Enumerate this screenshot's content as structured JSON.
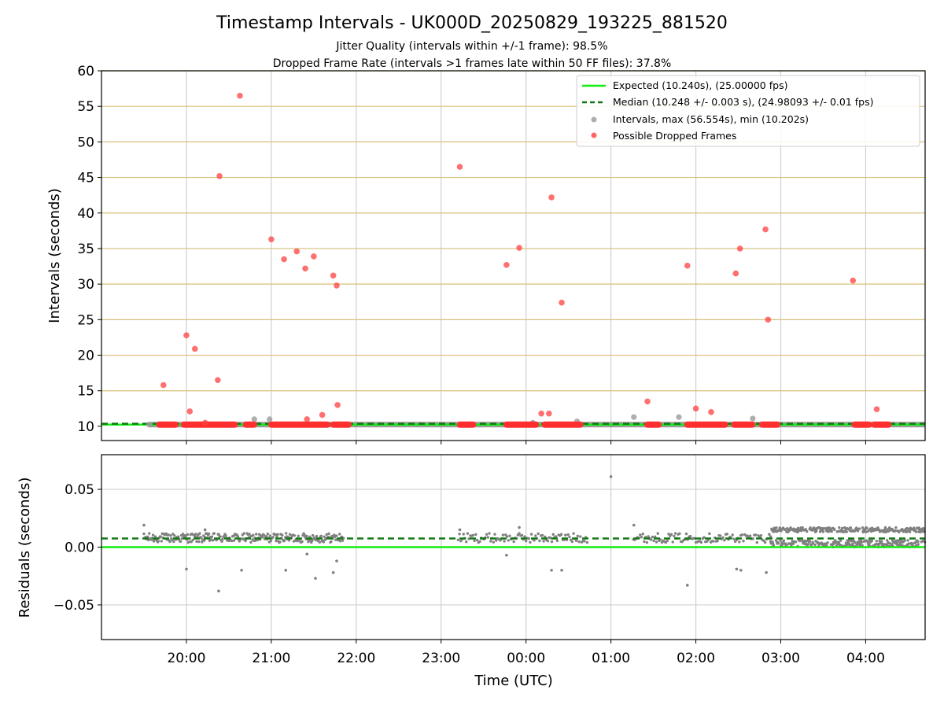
{
  "chart_data": [
    {
      "type": "scatter",
      "title": "Timestamp Intervals - UK000D_20250829_193225_881520",
      "subtitle_lines": [
        "Jitter Quality (intervals within +/-1 frame): 98.5%",
        "Dropped Frame Rate (intervals >1 frames late within 50 FF files): 37.8%"
      ],
      "xlabel": "",
      "ylabel": "Intervals (seconds)",
      "ylim": [
        8,
        60
      ],
      "yticks": [
        "10",
        "15",
        "20",
        "25",
        "30",
        "35",
        "40",
        "45",
        "50",
        "55",
        "60"
      ],
      "yticks_values": [
        10,
        15,
        20,
        25,
        30,
        35,
        40,
        45,
        50,
        55,
        60
      ],
      "xlim_hours": [
        19.0,
        28.7
      ],
      "x_hours_note": "hours UTC since 00:00 on 2025-08-29; values >24 are next day",
      "grid": {
        "x": true,
        "y_horizontal_lines": [
          15,
          20,
          25,
          30,
          35,
          40,
          45,
          50,
          55,
          60
        ]
      },
      "legend": {
        "placement": "top-right",
        "entries": [
          {
            "label": "Expected (10.240s), (25.00000 fps)",
            "kind": "line",
            "color": "#11ee11"
          },
          {
            "label": "Median (10.248 +/- 0.003 s), (24.98093 +/- 0.01 fps)",
            "kind": "dashed",
            "color": "#137813"
          },
          {
            "label": "Intervals, max (56.554s), min (10.202s)",
            "kind": "dot",
            "color": "#9a9a9a"
          },
          {
            "label": "Possible Dropped Frames",
            "kind": "dot",
            "color": "#ff4040"
          }
        ]
      },
      "expected_value": 10.24,
      "median_value": 10.248,
      "series": [
        {
          "name": "Possible Dropped Frames",
          "color": "#ff4040",
          "points": [
            [
              19.73,
              15.8
            ],
            [
              20.0,
              22.8
            ],
            [
              20.04,
              12.1
            ],
            [
              20.1,
              20.9
            ],
            [
              20.22,
              10.5
            ],
            [
              20.37,
              16.5
            ],
            [
              20.39,
              45.2
            ],
            [
              20.63,
              56.5
            ],
            [
              21.0,
              36.3
            ],
            [
              21.15,
              33.5
            ],
            [
              21.3,
              34.6
            ],
            [
              21.4,
              32.2
            ],
            [
              21.42,
              11.0
            ],
            [
              21.5,
              33.9
            ],
            [
              21.6,
              11.6
            ],
            [
              21.73,
              31.2
            ],
            [
              21.77,
              29.8
            ],
            [
              21.78,
              13.0
            ],
            [
              23.22,
              46.5
            ],
            [
              23.77,
              32.7
            ],
            [
              23.92,
              35.1
            ],
            [
              24.18,
              11.8
            ],
            [
              24.27,
              11.8
            ],
            [
              24.3,
              42.2
            ],
            [
              24.42,
              27.4
            ],
            [
              25.43,
              13.5
            ],
            [
              25.9,
              32.6
            ],
            [
              26.0,
              12.5
            ],
            [
              26.18,
              12.0
            ],
            [
              26.47,
              31.5
            ],
            [
              26.52,
              35.0
            ],
            [
              26.82,
              37.7
            ],
            [
              26.85,
              25.0
            ],
            [
              27.85,
              30.5
            ],
            [
              28.13,
              12.4
            ]
          ],
          "clusters_at_10_24": [
            [
              19.68,
              19.88
            ],
            [
              19.97,
              20.58
            ],
            [
              20.7,
              20.8
            ],
            [
              21.0,
              21.67
            ],
            [
              21.73,
              21.92
            ],
            [
              23.22,
              23.38
            ],
            [
              23.77,
              24.12
            ],
            [
              24.22,
              24.65
            ],
            [
              25.43,
              25.57
            ],
            [
              25.9,
              26.35
            ],
            [
              26.45,
              26.67
            ],
            [
              26.78,
              26.97
            ],
            [
              27.87,
              28.05
            ],
            [
              28.1,
              28.27
            ]
          ]
        },
        {
          "name": "Intervals",
          "color": "#9a9a9a",
          "points": [
            [
              19.56,
              10.24
            ],
            [
              20.8,
              11.0
            ],
            [
              20.98,
              11.0
            ],
            [
              24.08,
              10.5
            ],
            [
              24.6,
              10.7
            ],
            [
              25.27,
              11.3
            ],
            [
              25.8,
              11.3
            ],
            [
              26.67,
              11.1
            ]
          ]
        }
      ]
    },
    {
      "type": "scatter",
      "title": "",
      "xlabel": "Time (UTC)",
      "ylabel": "Residuals (seconds)",
      "ylim": [
        -0.08,
        0.08
      ],
      "yticks": [
        "−0.05",
        "0.00",
        "0.05"
      ],
      "yticks_values": [
        -0.05,
        0.0,
        0.05
      ],
      "xticks": [
        "20:00",
        "21:00",
        "22:00",
        "23:00",
        "00:00",
        "01:00",
        "02:00",
        "03:00",
        "04:00"
      ],
      "xticks_hours": [
        20,
        21,
        22,
        23,
        24,
        25,
        26,
        27,
        28
      ],
      "expected_value": 0.0,
      "median_value": 0.0075,
      "residual_outliers": [
        [
          19.5,
          0.019
        ],
        [
          20.0,
          -0.019
        ],
        [
          20.22,
          0.015
        ],
        [
          20.38,
          -0.038
        ],
        [
          20.65,
          -0.02
        ],
        [
          21.17,
          -0.02
        ],
        [
          21.42,
          -0.006
        ],
        [
          21.52,
          -0.027
        ],
        [
          21.73,
          -0.022
        ],
        [
          21.77,
          -0.012
        ],
        [
          23.22,
          0.015
        ],
        [
          23.77,
          -0.007
        ],
        [
          23.92,
          0.017
        ],
        [
          24.3,
          -0.02
        ],
        [
          24.42,
          -0.02
        ],
        [
          25.0,
          0.061
        ],
        [
          25.27,
          0.019
        ],
        [
          25.9,
          -0.033
        ],
        [
          26.48,
          -0.019
        ],
        [
          26.53,
          -0.02
        ],
        [
          26.83,
          -0.022
        ]
      ],
      "segments": [
        {
          "x_from": 19.5,
          "x_to": 21.85,
          "density": "medium",
          "spread": [
            0.0,
            0.014
          ]
        },
        {
          "x_from": 23.2,
          "x_to": 26.88,
          "density": "low",
          "spread": [
            0.0,
            0.014
          ]
        },
        {
          "x_from": 26.88,
          "x_to": 28.7,
          "density": "high",
          "spread": [
            0.0,
            0.017
          ]
        }
      ],
      "gaps": [
        [
          21.85,
          23.2
        ],
        [
          24.72,
          25.25
        ]
      ]
    }
  ]
}
